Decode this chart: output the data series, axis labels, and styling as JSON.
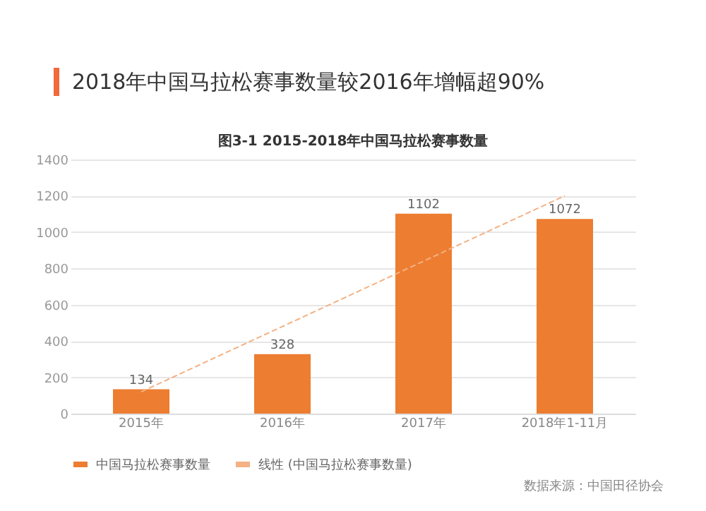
{
  "chart_data": {
    "type": "bar",
    "title": "2018年中国马拉松赛事数量较2016年增幅超90%",
    "subtitle": "图3-1 2015-2018年中国马拉松赛事数量",
    "categories": [
      "2015年",
      "2016年",
      "2017年",
      "2018年1-11月"
    ],
    "series": [
      {
        "name": "中国马拉松赛事数量",
        "color": "#ed7d31",
        "values": [
          134,
          328,
          1102,
          1072
        ],
        "value_labels": [
          "134",
          "328",
          "1102",
          "1072"
        ]
      },
      {
        "type": "line",
        "name": "线性 (中国马拉松赛事数量)",
        "color": "#f4b183",
        "line_style": "dashed",
        "x": [
          "2015年",
          "2018年1-11月"
        ],
        "values": [
          120,
          1200
        ]
      }
    ],
    "ylim": [
      0,
      1400
    ],
    "yticks": [
      0,
      200,
      400,
      600,
      800,
      1000,
      1200,
      1400
    ],
    "grid": "y",
    "legend": "bottom",
    "annotations": [
      "数据来源：中国田径协会"
    ]
  }
}
